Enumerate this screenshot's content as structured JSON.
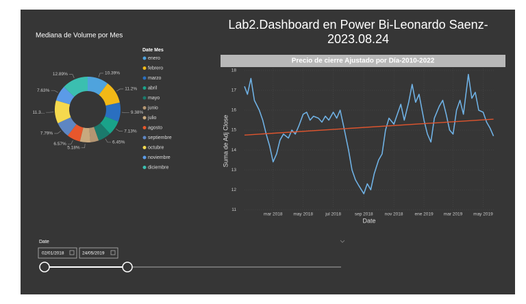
{
  "title": "Lab2.Dashboard en Power Bi-Leonardo Saenz-2023.08.24",
  "chart_data": [
    {
      "type": "donut",
      "title": "Mediana de Volume por Mes",
      "legend_title": "Date Mes",
      "categories": [
        "enero",
        "febrero",
        "marzo",
        "abril",
        "mayo",
        "junio",
        "julio",
        "agosto",
        "septiembre",
        "octubre",
        "noviembre",
        "diciembre"
      ],
      "values": [
        10.39,
        11.2,
        9.38,
        7.13,
        6.45,
        4.09,
        5.18,
        6.57,
        7.79,
        11.3,
        7.63,
        12.89
      ],
      "value_labels": [
        "10.39%",
        "11.2%",
        "9.38%",
        "7.13%",
        "6.45%",
        null,
        "5.18%",
        "6.57%",
        "7.79%",
        "11.3...",
        "7.63%",
        "12.89%"
      ],
      "colors": [
        "#4fa3dd",
        "#f2b817",
        "#2a6fc0",
        "#1aa38a",
        "#1b7a6c",
        "#b39572",
        "#c8a97e",
        "#e8572c",
        "#5e86c2",
        "#f5d94e",
        "#5b9be8",
        "#3bbfb0"
      ]
    },
    {
      "type": "line",
      "title": "Precio de cierre Ajustado por Día-2010-2022",
      "x_label": "Date",
      "y_label": "Suma de Adj Close",
      "x": [
        "2018-01-02",
        "2018-01-08",
        "2018-01-15",
        "2018-01-22",
        "2018-02-01",
        "2018-02-08",
        "2018-02-15",
        "2018-02-22",
        "2018-03-01",
        "2018-03-08",
        "2018-03-15",
        "2018-03-22",
        "2018-04-01",
        "2018-04-08",
        "2018-04-15",
        "2018-04-22",
        "2018-05-01",
        "2018-05-08",
        "2018-05-15",
        "2018-05-22",
        "2018-06-01",
        "2018-06-08",
        "2018-06-15",
        "2018-06-22",
        "2018-07-01",
        "2018-07-08",
        "2018-07-15",
        "2018-07-22",
        "2018-08-01",
        "2018-08-08",
        "2018-08-15",
        "2018-08-22",
        "2018-09-01",
        "2018-09-08",
        "2018-09-15",
        "2018-09-22",
        "2018-10-01",
        "2018-10-08",
        "2018-10-15",
        "2018-10-22",
        "2018-11-01",
        "2018-11-08",
        "2018-11-15",
        "2018-11-22",
        "2018-12-01",
        "2018-12-08",
        "2018-12-15",
        "2018-12-22",
        "2019-01-01",
        "2019-01-08",
        "2019-01-15",
        "2019-01-22",
        "2019-02-01",
        "2019-02-08",
        "2019-02-15",
        "2019-02-22",
        "2019-03-01",
        "2019-03-08",
        "2019-03-15",
        "2019-03-22",
        "2019-04-01",
        "2019-04-08",
        "2019-04-15",
        "2019-04-22",
        "2019-05-01",
        "2019-05-08",
        "2019-05-15",
        "2019-05-22"
      ],
      "series": [
        {
          "color": "#6fb1e4",
          "values": [
            17.2,
            16.8,
            17.6,
            16.5,
            16.0,
            15.5,
            14.8,
            14.2,
            13.4,
            13.8,
            14.5,
            14.8,
            14.6,
            15.0,
            14.8,
            15.2,
            15.8,
            15.9,
            15.5,
            15.7,
            15.6,
            15.4,
            15.7,
            15.5,
            15.9,
            15.6,
            16.0,
            15.2,
            14.0,
            13.0,
            12.5,
            12.2,
            11.8,
            12.3,
            12.0,
            12.8,
            13.5,
            13.8,
            15.0,
            15.6,
            15.3,
            15.8,
            16.3,
            15.5,
            16.4,
            17.3,
            16.4,
            16.8,
            15.5,
            14.8,
            14.4,
            15.6,
            16.2,
            16.5,
            15.8,
            15.0,
            14.8,
            16.0,
            16.5,
            15.8,
            17.8,
            16.6,
            16.9,
            16.0,
            15.9,
            15.4,
            15.1,
            14.7
          ]
        }
      ],
      "trend_line": {
        "color": "#e0552e",
        "x": [
          "2018-01-02",
          "2019-05-22"
        ],
        "values": [
          14.75,
          15.55
        ]
      },
      "xlim": [
        "2018-01-02",
        "2019-05-24"
      ],
      "xticks": [
        {
          "value": "2018-03-01",
          "label": "mar 2018"
        },
        {
          "value": "2018-05-01",
          "label": "may 2018"
        },
        {
          "value": "2018-07-01",
          "label": "jul 2018"
        },
        {
          "value": "2018-09-01",
          "label": "sep 2018"
        },
        {
          "value": "2018-11-01",
          "label": "nov 2018"
        },
        {
          "value": "2019-01-01",
          "label": "ene 2019"
        },
        {
          "value": "2019-03-01",
          "label": "mar 2019"
        },
        {
          "value": "2019-05-01",
          "label": "may 2019"
        }
      ],
      "ylim": [
        10.8,
        18.1
      ],
      "yticks": [
        11,
        12,
        13,
        14,
        15,
        16,
        17,
        18
      ],
      "grid": true
    }
  ],
  "slicer": {
    "label": "Date",
    "start": "02/01/2018",
    "end": "24/05/2019"
  }
}
